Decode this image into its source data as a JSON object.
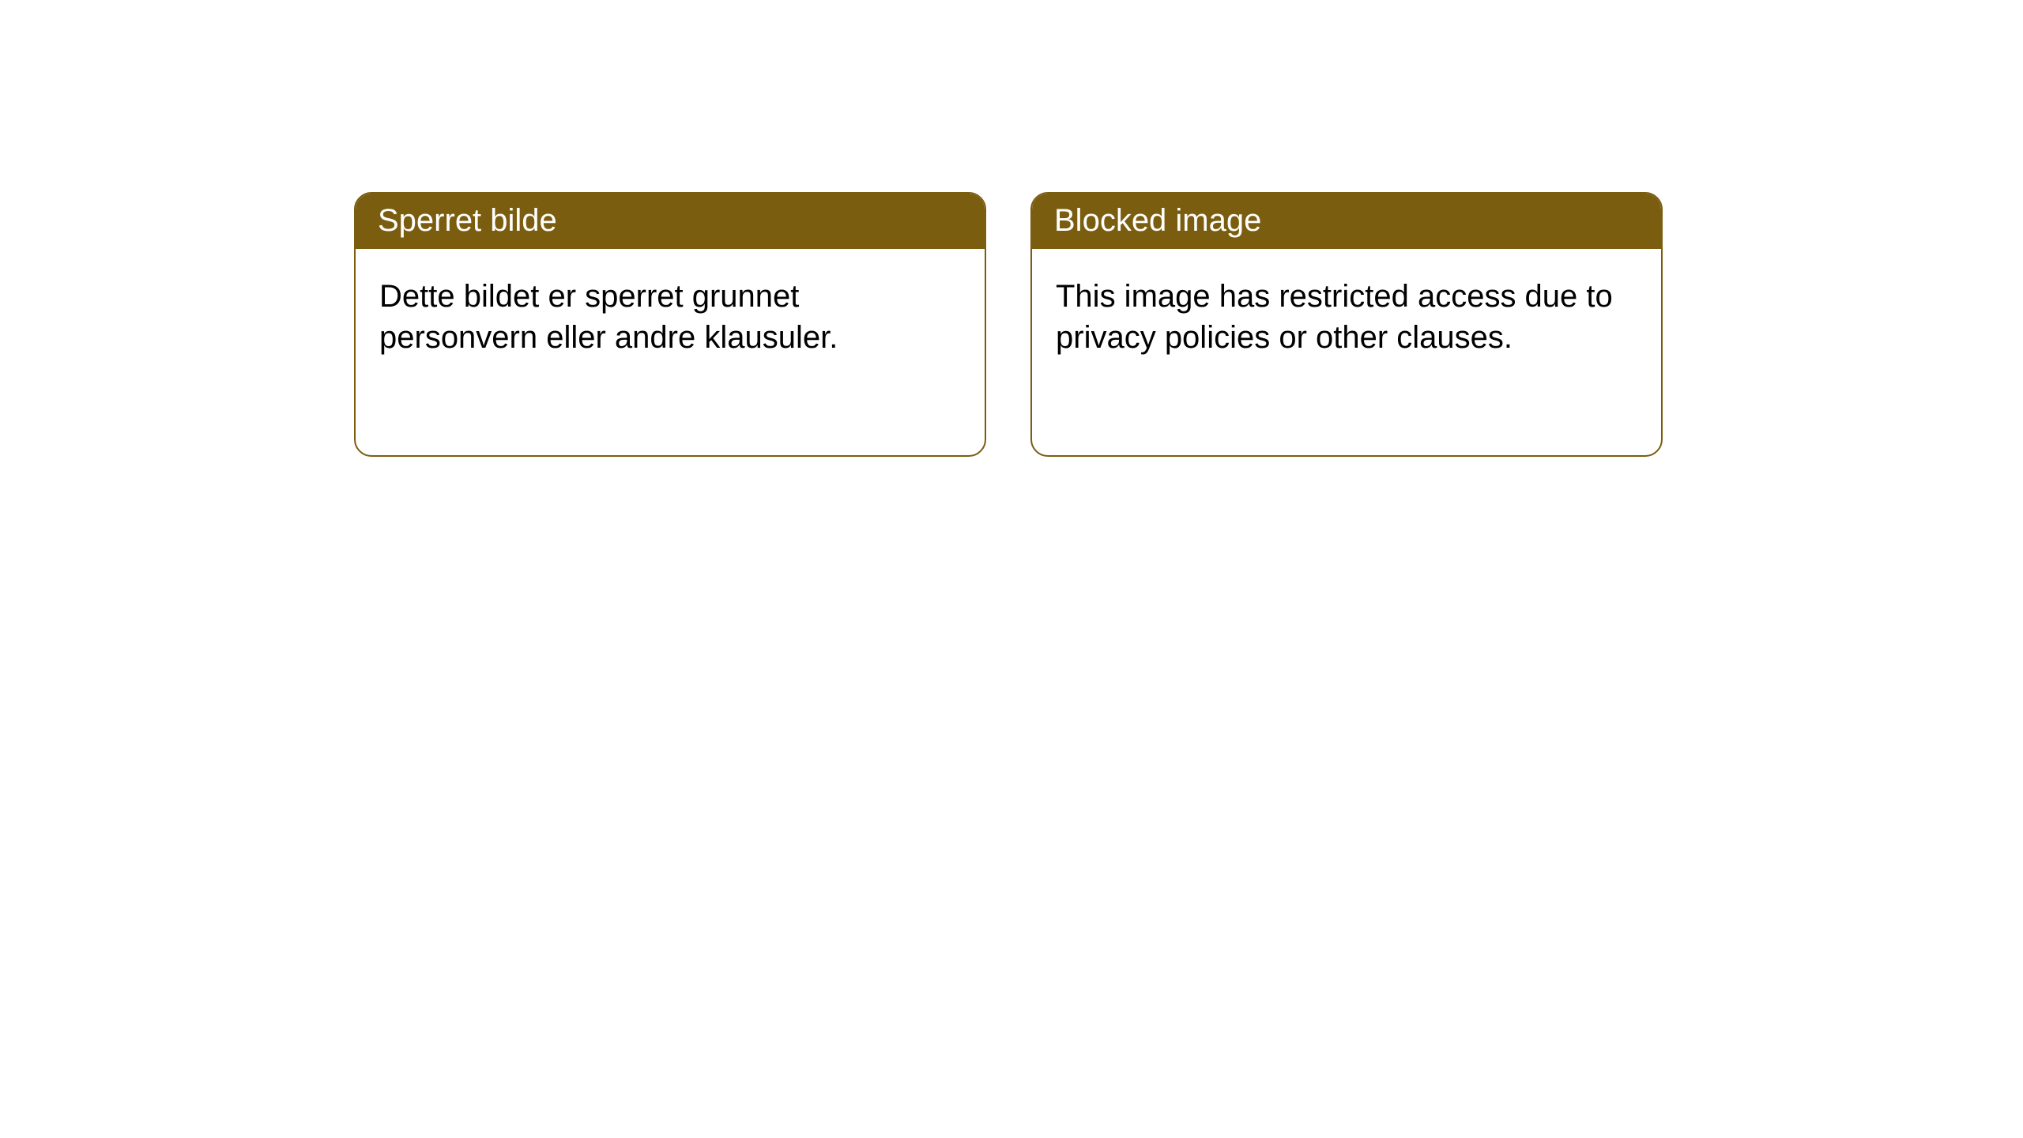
{
  "cards": [
    {
      "title": "Sperret bilde",
      "body": "Dette bildet er sperret grunnet personvern eller andre klausuler."
    },
    {
      "title": "Blocked image",
      "body": "This image has restricted access due to privacy policies or other clauses."
    }
  ],
  "colors": {
    "header_bg": "#7a5d0e",
    "header_text": "#ffffff",
    "body_bg": "#ffffff",
    "body_text": "#000000",
    "border": "#7a5d0e",
    "page_bg": "#ffffff"
  }
}
